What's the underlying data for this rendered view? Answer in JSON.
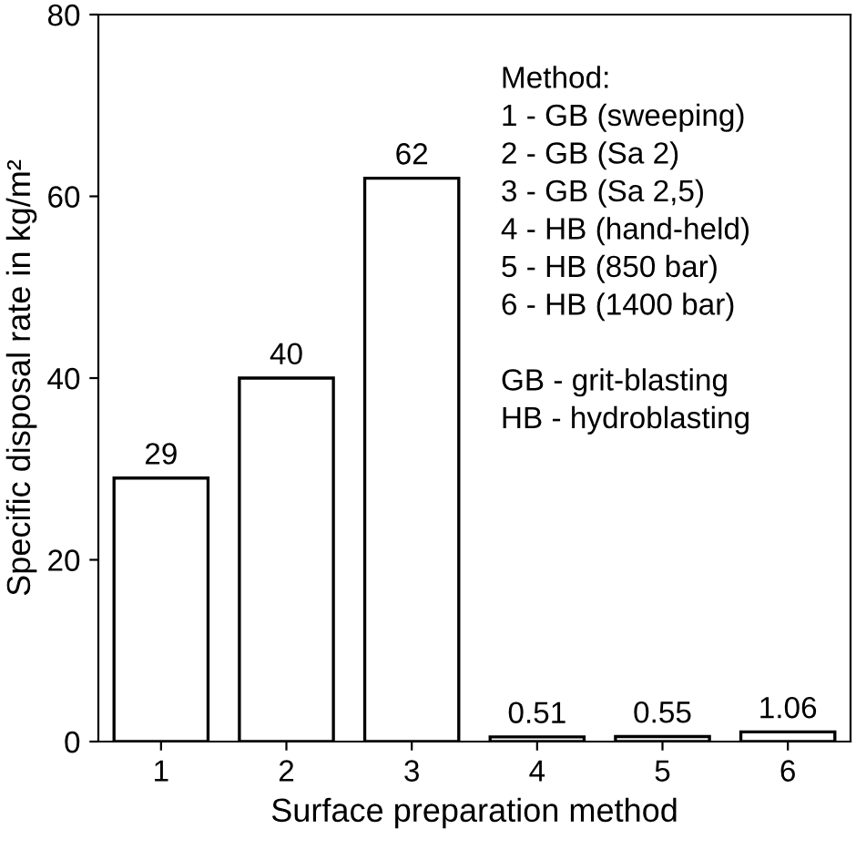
{
  "chart_data": {
    "type": "bar",
    "xlabel": "Surface preparation method",
    "ylabel": "Specific disposal rate in kg/m²",
    "categories": [
      "1",
      "2",
      "3",
      "4",
      "5",
      "6"
    ],
    "values": [
      29,
      40,
      62,
      0.51,
      0.55,
      1.06
    ],
    "value_labels": [
      "29",
      "40",
      "62",
      "0.51",
      "0.55",
      "1.06"
    ],
    "color": "#ffffff",
    "ylim": [
      0,
      80
    ],
    "yticks": [
      0,
      20,
      40,
      60,
      80
    ],
    "grid": false,
    "annotations": [
      "Method:",
      "1 - GB (sweeping)",
      "2 - GB (Sa 2)",
      "3 - GB (Sa 2,5)",
      "4 - HB (hand-held)",
      "5 - HB (850 bar)",
      "6 - HB (1400 bar)",
      "GB - grit-blasting",
      "HB - hydroblasting"
    ]
  }
}
